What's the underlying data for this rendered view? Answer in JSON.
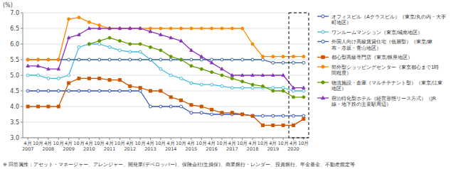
{
  "chart_data": {
    "type": "line",
    "ylabel": "(%)",
    "annotations": [
      "※ 回答属性：アセット・マネージャー、アレンジャー、開発業(デベロッパー)、保険会社(生損保)、商業銀行・レンダー、投資銀行、年金基金、不動産鑑定等"
    ],
    "categories": [
      "4月\n2007",
      "10月",
      "4月\n2008",
      "10月",
      "4月\n2009",
      "10月",
      "4月\n2010",
      "10月",
      "4月\n2011",
      "10月",
      "4月\n2012",
      "10月",
      "4月\n2013",
      "10月",
      "4月\n2014",
      "10月",
      "4月\n2015",
      "10月",
      "4月\n2016",
      "10月",
      "4月\n2017",
      "10月",
      "4月\n2018",
      "10月",
      "4月\n2019",
      "10月",
      "4月\n2020",
      "10月"
    ],
    "ylim": [
      3.0,
      7.0
    ],
    "yticks": [
      {
        "value": 3,
        "label": "3.0"
      },
      3.5,
      {
        "value": 4,
        "label": "4.0"
      },
      4.5,
      {
        "value": 5,
        "label": "5.0"
      },
      5.5,
      {
        "value": 6,
        "label": "6.0"
      },
      6.5,
      {
        "value": 7,
        "label": "7.0"
      }
    ],
    "grid": true,
    "legend": "right",
    "series": [
      {
        "name": "オフィスビル（Aクラスビル）（東京/丸の内・大手\n町地区）",
        "color": "#3355bb",
        "marker": "circle-open",
        "values": [
          4.5,
          4.5,
          4.5,
          4.5,
          4.5,
          4.5,
          4.5,
          4.5,
          4.5,
          4.5,
          4.5,
          4.5,
          4.0,
          4.0,
          4.0,
          4.0,
          3.8,
          3.8,
          3.75,
          3.75,
          3.75,
          3.75,
          3.7,
          3.7,
          3.7,
          3.7,
          3.7,
          3.7
        ]
      },
      {
        "name": "ワンルームマンション（東京/城南地区）",
        "color": "#44bbdd",
        "marker": "circle-open",
        "values": [
          5.0,
          5.0,
          4.9,
          4.9,
          5.0,
          5.9,
          6.0,
          6.0,
          5.9,
          5.8,
          5.75,
          5.75,
          5.5,
          5.2,
          5.0,
          4.9,
          4.75,
          4.7,
          4.7,
          4.65,
          4.6,
          4.6,
          4.6,
          4.6,
          4.6,
          4.6,
          4.5,
          4.5
        ]
      },
      {
        "name": "外国人向け高級賃貸住宅（低層型）（東京/麻\n布・赤坂・青山地区）",
        "color": "#336699",
        "marker": "circle-open",
        "values": [
          5.5,
          5.5,
          5.5,
          5.5,
          5.5,
          5.5,
          5.5,
          5.5,
          5.5,
          5.5,
          5.5,
          5.5,
          5.5,
          5.5,
          5.5,
          5.5,
          5.5,
          5.5,
          5.5,
          5.5,
          5.5,
          5.5,
          5.5,
          5.5,
          5.4,
          5.4,
          5.4,
          5.4
        ]
      },
      {
        "name": "都心型高級専門店（東京/銀座地区）",
        "color": "#cc5500",
        "marker": "square",
        "values": [
          4.0,
          4.0,
          4.0,
          4.0,
          4.75,
          4.9,
          4.9,
          4.9,
          4.85,
          4.85,
          4.65,
          4.6,
          4.5,
          4.5,
          4.3,
          4.2,
          4.05,
          4.0,
          3.9,
          3.8,
          3.8,
          3.75,
          3.7,
          3.4,
          3.4,
          3.4,
          3.4,
          3.6
        ]
      },
      {
        "name": "郊外型ショッピングセンター（東京都心まで1時\n間程度）",
        "color": "#ff8800",
        "marker": "circle",
        "values": [
          5.5,
          5.5,
          5.5,
          5.5,
          6.8,
          6.85,
          6.7,
          6.6,
          6.5,
          6.5,
          6.5,
          6.5,
          6.5,
          6.5,
          6.5,
          6.5,
          6.5,
          6.5,
          6.5,
          6.5,
          6.5,
          6.5,
          6.0,
          5.6,
          5.6,
          5.6,
          5.6,
          5.6
        ]
      },
      {
        "name": "物流施設・倉庫（マルチテナント型）（東京/江東\n地区）",
        "color": "#669900",
        "marker": "circle",
        "values": [
          null,
          null,
          null,
          null,
          null,
          null,
          6.0,
          6.1,
          6.2,
          6.1,
          6.0,
          6.0,
          5.9,
          5.8,
          5.6,
          5.5,
          5.3,
          5.2,
          5.1,
          5.0,
          4.9,
          4.8,
          4.7,
          4.65,
          4.5,
          4.5,
          4.3,
          4.3
        ]
      },
      {
        "name": "宿泊特化型ホテル（経営形態リース方式）（JR\n線・地下鉄の主要駅周辺）",
        "color": "#8833bb",
        "marker": "triangle",
        "values": [
          5.3,
          5.3,
          5.2,
          5.2,
          6.2,
          6.3,
          6.5,
          6.5,
          6.5,
          6.5,
          6.5,
          6.5,
          6.4,
          6.3,
          6.2,
          6.1,
          5.8,
          5.6,
          5.4,
          5.2,
          5.0,
          5.0,
          5.0,
          5.0,
          5.0,
          5.0,
          4.6,
          4.6
        ]
      }
    ]
  }
}
